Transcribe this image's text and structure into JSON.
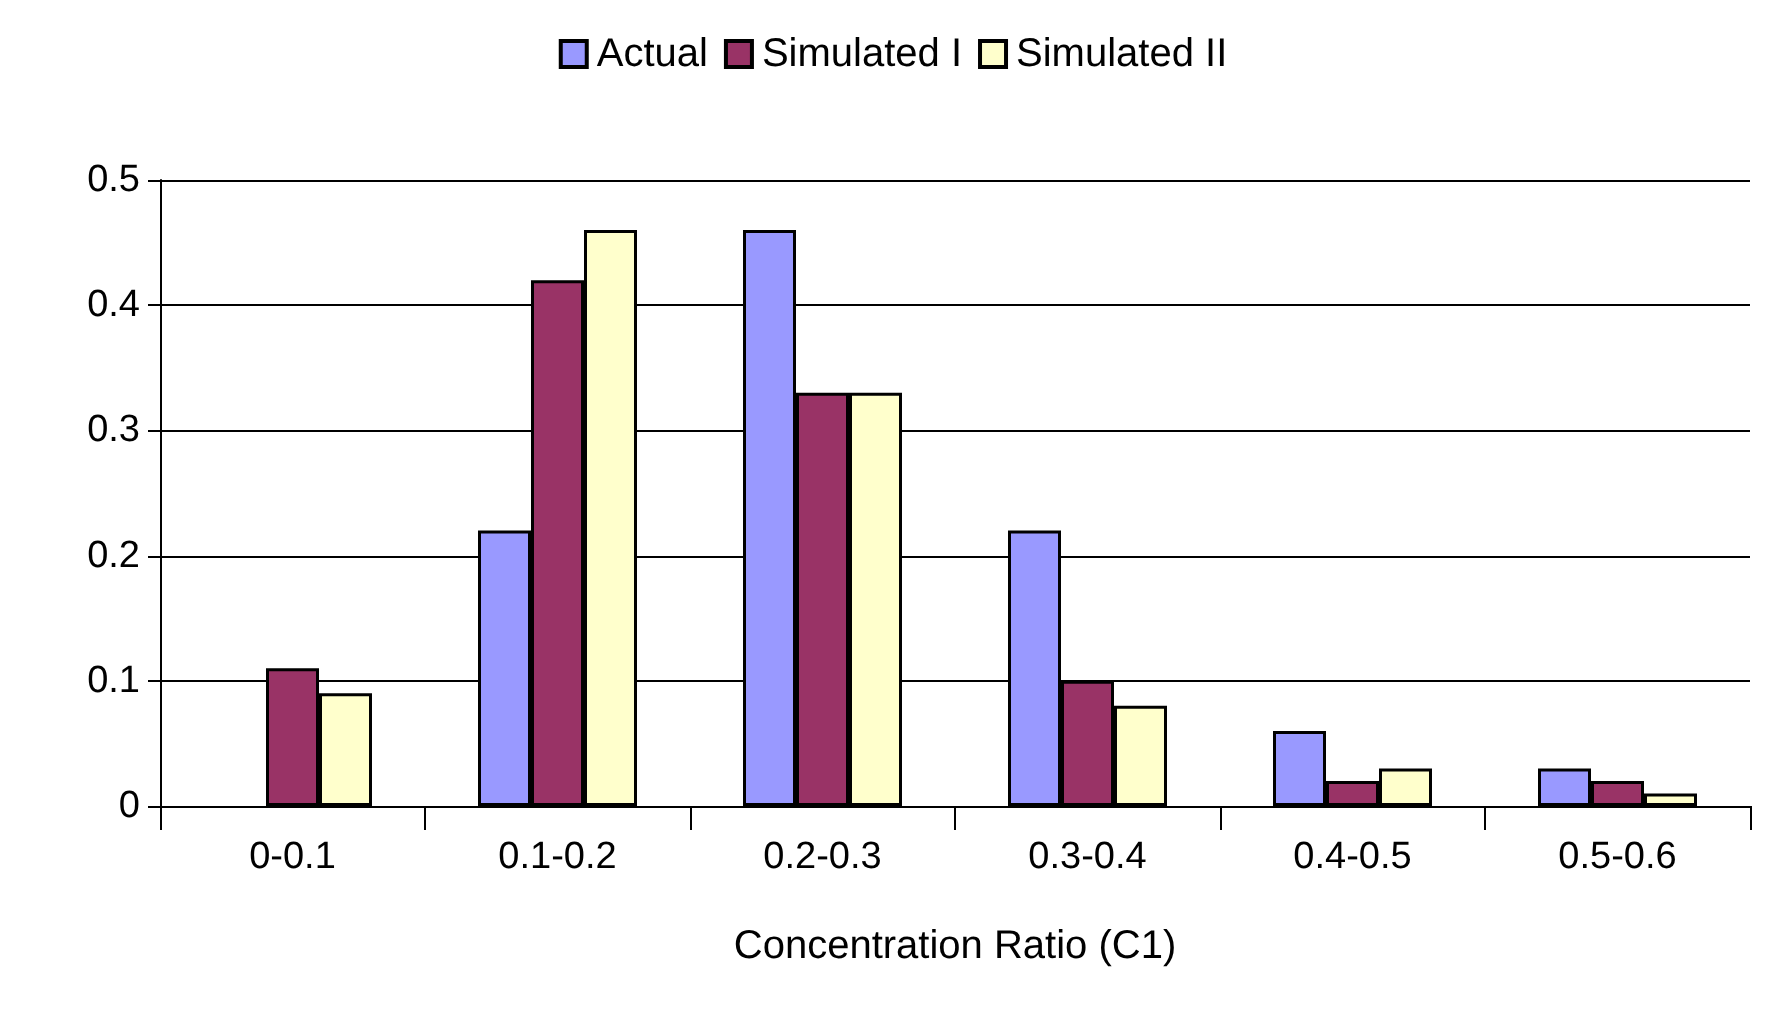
{
  "chart_data": {
    "type": "bar",
    "xlabel": "Concentration Ratio (C1)",
    "categories": [
      "0-0.1",
      "0.1-0.2",
      "0.2-0.3",
      "0.3-0.4",
      "0.4-0.5",
      "0.5-0.6"
    ],
    "series": [
      {
        "name": "Actual",
        "color": "#9999ff",
        "values": [
          0,
          0.22,
          0.46,
          0.22,
          0.06,
          0.03
        ]
      },
      {
        "name": "Simulated I",
        "color": "#993366",
        "values": [
          0.11,
          0.42,
          0.33,
          0.1,
          0.02,
          0.02
        ]
      },
      {
        "name": "Simulated II",
        "color": "#ffffcc",
        "values": [
          0.09,
          0.46,
          0.33,
          0.08,
          0.03,
          0.01
        ]
      }
    ],
    "ylim": [
      0,
      0.5
    ],
    "yticks": [
      0,
      0.1,
      0.2,
      0.3,
      0.4,
      0.5
    ],
    "grid": "y",
    "legend": "top"
  }
}
